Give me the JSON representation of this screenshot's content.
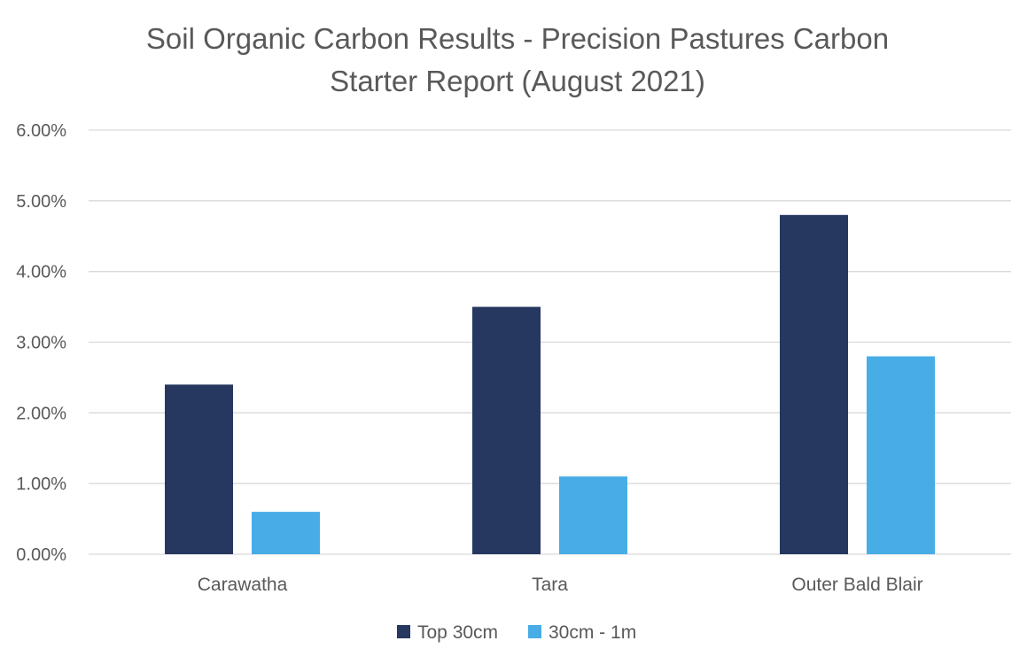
{
  "chart_data": {
    "type": "bar",
    "title": "Soil Organic Carbon Results - Precision Pastures Carbon Starter Report (August 2021)",
    "title_lines": [
      "Soil Organic Carbon Results - Precision Pastures Carbon",
      "Starter Report (August 2021)"
    ],
    "xlabel": "",
    "ylabel": "",
    "categories": [
      "Carawatha",
      "Tara",
      "Outer Bald Blair"
    ],
    "series": [
      {
        "name": "Top 30cm",
        "values": [
          0.024,
          0.035,
          0.048
        ],
        "color": "#263860"
      },
      {
        "name": "30cm - 1m",
        "values": [
          0.006,
          0.011,
          0.028
        ],
        "color": "#48ade6"
      }
    ],
    "ylim": [
      0,
      0.06
    ],
    "yticks": [
      0,
      0.01,
      0.02,
      0.03,
      0.04,
      0.05,
      0.06
    ],
    "ytick_labels": [
      "0.00%",
      "1.00%",
      "2.00%",
      "3.00%",
      "4.00%",
      "5.00%",
      "6.00%"
    ],
    "grid": true,
    "legend_position": "bottom"
  }
}
